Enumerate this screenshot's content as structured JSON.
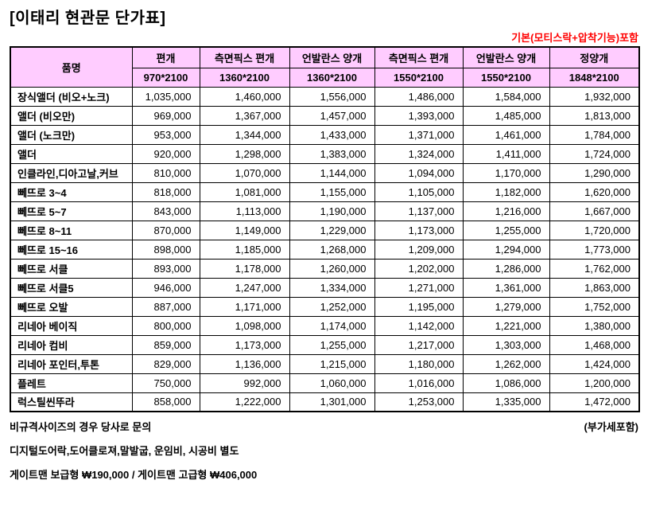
{
  "page": {
    "title": "[이태리 현관문 단가표]",
    "top_note": "기본(모티스락+압착기능)포함"
  },
  "colors": {
    "header_bg": "#FFCCFF",
    "note_red": "#FF0000",
    "border": "#000000"
  },
  "table": {
    "name_header": "품명",
    "columns": [
      {
        "type": "편개",
        "size": "970*2100"
      },
      {
        "type": "측면픽스 편개",
        "size": "1360*2100"
      },
      {
        "type": "언발란스 양개",
        "size": "1360*2100"
      },
      {
        "type": "측면픽스 편개",
        "size": "1550*2100"
      },
      {
        "type": "언발란스 양개",
        "size": "1550*2100"
      },
      {
        "type": "정양개",
        "size": "1848*2100"
      }
    ],
    "rows": [
      {
        "name": "장식앨더 (비오+노크)",
        "prices": [
          "1,035,000",
          "1,460,000",
          "1,556,000",
          "1,486,000",
          "1,584,000",
          "1,932,000"
        ]
      },
      {
        "name": "앨더 (비오만)",
        "prices": [
          "969,000",
          "1,367,000",
          "1,457,000",
          "1,393,000",
          "1,485,000",
          "1,813,000"
        ]
      },
      {
        "name": "앨더 (노크만)",
        "prices": [
          "953,000",
          "1,344,000",
          "1,433,000",
          "1,371,000",
          "1,461,000",
          "1,784,000"
        ]
      },
      {
        "name": "앨더",
        "prices": [
          "920,000",
          "1,298,000",
          "1,383,000",
          "1,324,000",
          "1,411,000",
          "1,724,000"
        ]
      },
      {
        "name": "인클라인,디아고날,커브",
        "prices": [
          "810,000",
          "1,070,000",
          "1,144,000",
          "1,094,000",
          "1,170,000",
          "1,290,000"
        ]
      },
      {
        "name": "뻬뜨로 3~4",
        "prices": [
          "818,000",
          "1,081,000",
          "1,155,000",
          "1,105,000",
          "1,182,000",
          "1,620,000"
        ]
      },
      {
        "name": "뻬뜨로 5~7",
        "prices": [
          "843,000",
          "1,113,000",
          "1,190,000",
          "1,137,000",
          "1,216,000",
          "1,667,000"
        ]
      },
      {
        "name": "뻬뜨로 8~11",
        "prices": [
          "870,000",
          "1,149,000",
          "1,229,000",
          "1,173,000",
          "1,255,000",
          "1,720,000"
        ]
      },
      {
        "name": "뻬뜨로 15~16",
        "prices": [
          "898,000",
          "1,185,000",
          "1,268,000",
          "1,209,000",
          "1,294,000",
          "1,773,000"
        ]
      },
      {
        "name": "뻬뜨로 서클",
        "prices": [
          "893,000",
          "1,178,000",
          "1,260,000",
          "1,202,000",
          "1,286,000",
          "1,762,000"
        ]
      },
      {
        "name": "뻬뜨로 서클5",
        "prices": [
          "946,000",
          "1,247,000",
          "1,334,000",
          "1,271,000",
          "1,361,000",
          "1,863,000"
        ]
      },
      {
        "name": "뻬뜨로 오발",
        "prices": [
          "887,000",
          "1,171,000",
          "1,252,000",
          "1,195,000",
          "1,279,000",
          "1,752,000"
        ]
      },
      {
        "name": "리네아 베이직",
        "prices": [
          "800,000",
          "1,098,000",
          "1,174,000",
          "1,142,000",
          "1,221,000",
          "1,380,000"
        ]
      },
      {
        "name": "리네아 컴비",
        "prices": [
          "859,000",
          "1,173,000",
          "1,255,000",
          "1,217,000",
          "1,303,000",
          "1,468,000"
        ]
      },
      {
        "name": "리네아 포인터,투톤",
        "prices": [
          "829,000",
          "1,136,000",
          "1,215,000",
          "1,180,000",
          "1,262,000",
          "1,424,000"
        ]
      },
      {
        "name": "플레트",
        "prices": [
          "750,000",
          "992,000",
          "1,060,000",
          "1,016,000",
          "1,086,000",
          "1,200,000"
        ]
      },
      {
        "name": "럭스틸씬뚜라",
        "prices": [
          "858,000",
          "1,222,000",
          "1,301,000",
          "1,253,000",
          "1,335,000",
          "1,472,000"
        ]
      }
    ]
  },
  "footer": {
    "note1_left": "비규격사이즈의 경우 당사로 문의",
    "note1_right": "(부가세포함)",
    "note2": "디지털도어락,도어클로져,말발굽, 운임비, 시공비 별도",
    "note3": "게이트맨 보급형 ₩190,000 / 게이트맨 고급형 ₩406,000"
  }
}
